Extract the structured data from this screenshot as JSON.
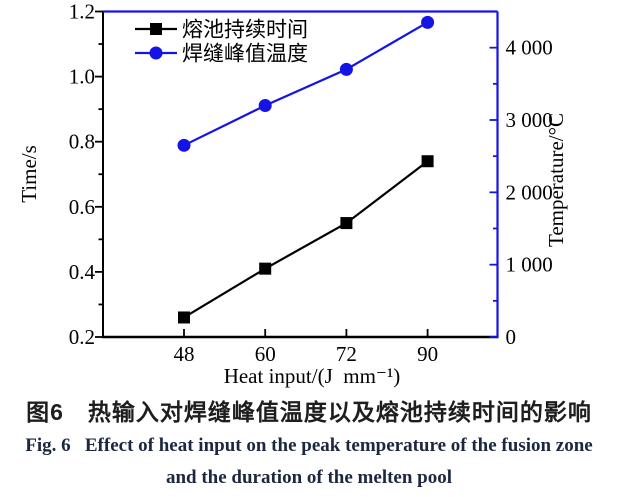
{
  "chart_data": {
    "type": "line",
    "title": "",
    "grid": false,
    "x": {
      "label": "Heat input/(J  mm⁻¹)",
      "categories": [
        "48",
        "60",
        "72",
        "90"
      ]
    },
    "y_left": {
      "label": "Time/s",
      "min": 0.2,
      "max": 1.2,
      "major_step": 0.2,
      "minor_step": 0.1,
      "tick_labels": [
        "0.2",
        "0.4",
        "0.6",
        "0.8",
        "1.0",
        "1.2"
      ],
      "color": "#000000"
    },
    "y_right": {
      "label": "Temperature/°C",
      "min": 0,
      "max": 4500,
      "major_step": 1000,
      "minor_step": 500,
      "tick_labels": [
        "0",
        "1 000",
        "2 000",
        "3 000",
        "4 000"
      ],
      "color": "#1414e6"
    },
    "series": [
      {
        "name": "熔池持续时间",
        "axis": "left",
        "color": "#000000",
        "marker": "square",
        "values": [
          0.26,
          0.41,
          0.55,
          0.74
        ]
      },
      {
        "name": "焊缝峰值温度",
        "axis": "right",
        "color": "#1414e6",
        "marker": "circle",
        "values": [
          2650,
          3200,
          3700,
          4350
        ]
      }
    ],
    "legend": {
      "position": "top-left",
      "entries": [
        "熔池持续时间",
        "焊缝峰值温度"
      ]
    }
  },
  "caption": {
    "zh": "图6　热输入对焊缝峰值温度以及熔池持续时间的影响",
    "en_line1": "Fig. 6   Effect of heat input on the peak temperature of the fusion zone",
    "en_line2": "and the duration of the melten pool"
  }
}
